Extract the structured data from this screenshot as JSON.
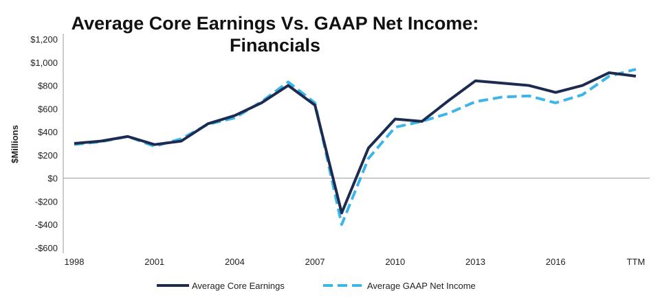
{
  "chart_data": {
    "type": "line",
    "title_line1": "Average Core Earnings Vs. GAAP Net Income:",
    "title_line2": "Financials",
    "xlabel": "",
    "ylabel": "$Millions",
    "ylim": [
      -600,
      1200
    ],
    "yticks": [
      1200,
      1000,
      800,
      600,
      400,
      200,
      0,
      -200,
      -400,
      -600
    ],
    "ytick_labels": [
      "$1,200",
      "$1,000",
      "$800",
      "$600",
      "$400",
      "$200",
      "$0",
      "-$200",
      "-$400",
      "-$600"
    ],
    "x": [
      "1998",
      "1999",
      "2000",
      "2001",
      "2002",
      "2003",
      "2004",
      "2005",
      "2006",
      "2007",
      "2008",
      "2009",
      "2010",
      "2011",
      "2012",
      "2013",
      "2014",
      "2015",
      "2016",
      "2017",
      "2018",
      "TTM"
    ],
    "xtick_labels": [
      "1998",
      "2001",
      "2004",
      "2007",
      "2010",
      "2013",
      "2016",
      "TTM"
    ],
    "xtick_indices": [
      0,
      3,
      6,
      9,
      12,
      15,
      18,
      21
    ],
    "legend_position": "bottom",
    "series": [
      {
        "name": "Average Core Earnings",
        "color": "#1c2b4f",
        "style": "solid",
        "values": [
          300,
          320,
          360,
          290,
          320,
          470,
          540,
          650,
          800,
          630,
          -300,
          260,
          510,
          490,
          670,
          840,
          820,
          800,
          740,
          800,
          910,
          880
        ]
      },
      {
        "name": "Average GAAP Net Income",
        "color": "#3db5e8",
        "style": "dashed",
        "values": [
          290,
          315,
          360,
          275,
          340,
          465,
          520,
          660,
          830,
          650,
          -400,
          170,
          440,
          490,
          560,
          660,
          700,
          710,
          650,
          720,
          880,
          940
        ]
      }
    ]
  }
}
